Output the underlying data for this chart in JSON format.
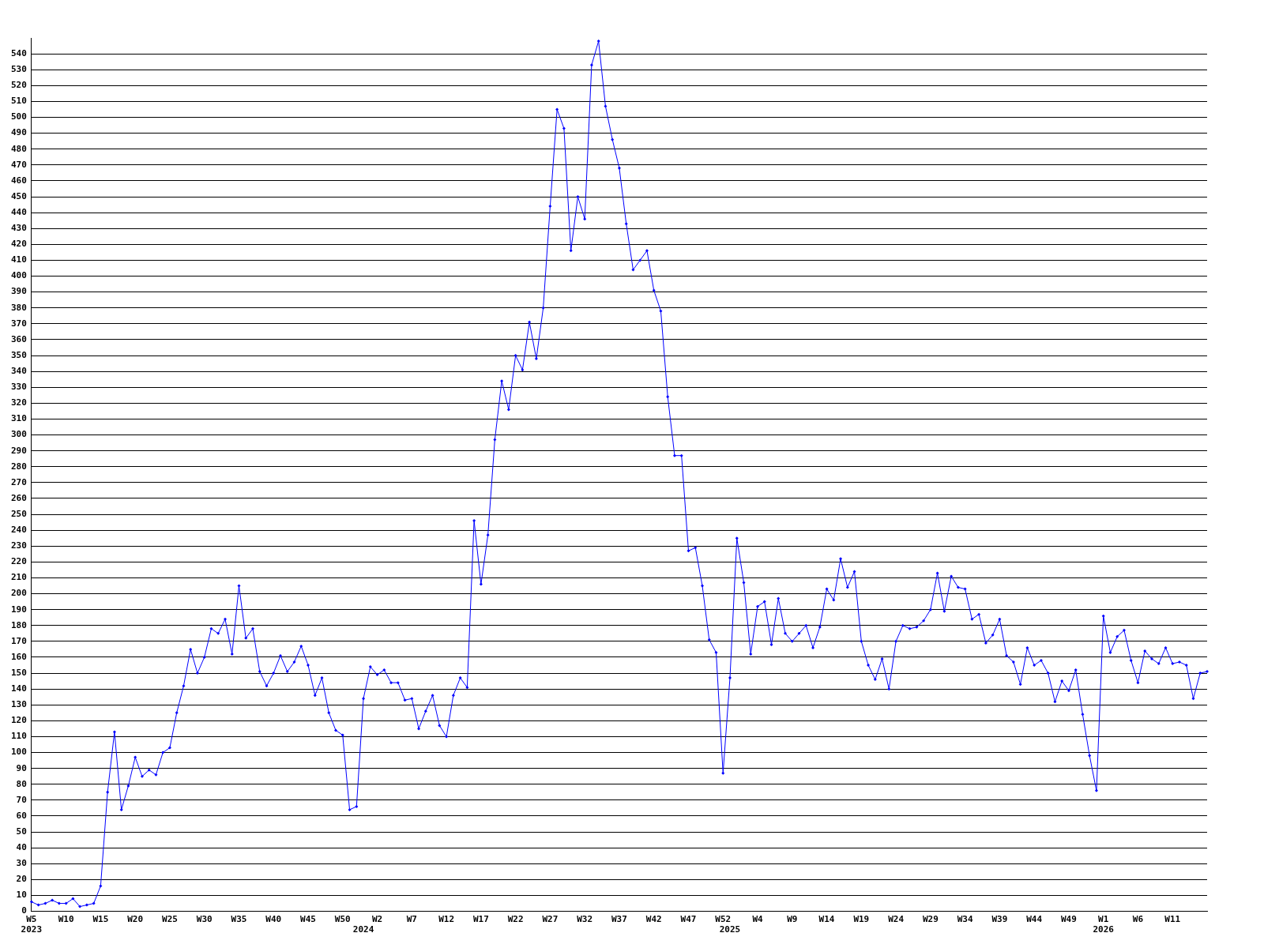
{
  "chart_data": {
    "type": "line",
    "categories": [
      "W5\n2023",
      null,
      null,
      null,
      null,
      "W10",
      null,
      null,
      null,
      null,
      "W15",
      null,
      null,
      null,
      null,
      "W20",
      null,
      null,
      null,
      null,
      "W25",
      null,
      null,
      null,
      null,
      "W30",
      null,
      null,
      null,
      null,
      "W35",
      null,
      null,
      null,
      null,
      "W40",
      null,
      null,
      null,
      null,
      "W45",
      null,
      null,
      null,
      null,
      "W50",
      null,
      null,
      "\n2024",
      null,
      "W2",
      null,
      null,
      null,
      null,
      "W7",
      null,
      null,
      null,
      null,
      "W12",
      null,
      null,
      null,
      null,
      "W17",
      null,
      null,
      null,
      null,
      "W22",
      null,
      null,
      null,
      null,
      "W27",
      null,
      null,
      null,
      null,
      "W32",
      null,
      null,
      null,
      null,
      "W37",
      null,
      null,
      null,
      null,
      "W42",
      null,
      null,
      null,
      null,
      "W47",
      null,
      null,
      null,
      null,
      "W52",
      "\n2025",
      null,
      null,
      null,
      "W4",
      null,
      null,
      null,
      null,
      "W9",
      null,
      null,
      null,
      null,
      "W14",
      null,
      null,
      null,
      null,
      "W19",
      null,
      null,
      null,
      null,
      "W24",
      null,
      null,
      null,
      null,
      "W29",
      null,
      null,
      null,
      null,
      "W34",
      null,
      null,
      null,
      null,
      "W39",
      null,
      null,
      null,
      null,
      "W44",
      null,
      null,
      null,
      null,
      "W49",
      null,
      null,
      null,
      null,
      "W1\n2026",
      null,
      null,
      null,
      null,
      "W6",
      null,
      null,
      null,
      null,
      "W11",
      null,
      null,
      null,
      null,
      null
    ],
    "values": [
      6,
      4,
      5,
      7,
      5,
      5,
      8,
      3,
      4,
      5,
      16,
      75,
      113,
      64,
      79,
      97,
      85,
      89,
      86,
      100,
      103,
      125,
      142,
      165,
      150,
      160,
      178,
      175,
      184,
      162,
      205,
      172,
      178,
      151,
      142,
      150,
      161,
      151,
      157,
      167,
      155,
      136,
      147,
      125,
      114,
      111,
      64,
      66,
      134,
      154,
      149,
      152,
      144,
      144,
      133,
      134,
      115,
      126,
      136,
      117,
      110,
      136,
      147,
      141,
      246,
      206,
      237,
      297,
      334,
      316,
      350,
      341,
      371,
      348,
      380,
      444,
      505,
      493,
      416,
      450,
      436,
      533,
      548,
      507,
      486,
      468,
      433,
      404,
      410,
      416,
      391,
      378,
      324,
      287,
      287,
      227,
      229,
      205,
      171,
      163,
      87,
      147,
      235,
      207,
      162,
      192,
      195,
      168,
      197,
      175,
      170,
      175,
      180,
      166,
      179,
      203,
      196,
      222,
      204,
      214,
      170,
      155,
      146,
      159,
      140,
      170,
      180,
      178,
      179,
      183,
      190,
      213,
      189,
      211,
      204,
      203,
      184,
      187,
      169,
      174,
      184,
      161,
      157,
      143,
      166,
      155,
      158,
      150,
      132,
      145,
      139,
      152,
      124,
      98,
      76,
      186,
      163,
      173,
      177,
      158,
      144,
      164,
      159,
      156,
      166,
      156,
      157,
      155,
      134,
      150,
      151
    ],
    "color": "#0000ff",
    "ylim": [
      0,
      550
    ],
    "yticks": [
      0,
      10,
      20,
      30,
      40,
      50,
      60,
      70,
      80,
      90,
      100,
      110,
      120,
      130,
      140,
      150,
      160,
      170,
      180,
      190,
      200,
      210,
      220,
      230,
      240,
      250,
      260,
      270,
      280,
      290,
      300,
      310,
      320,
      330,
      340,
      350,
      360,
      370,
      380,
      390,
      400,
      410,
      420,
      430,
      440,
      450,
      460,
      470,
      480,
      490,
      500,
      510,
      520,
      530,
      540
    ],
    "grid": "y",
    "marker": "diamond",
    "legend": false
  }
}
